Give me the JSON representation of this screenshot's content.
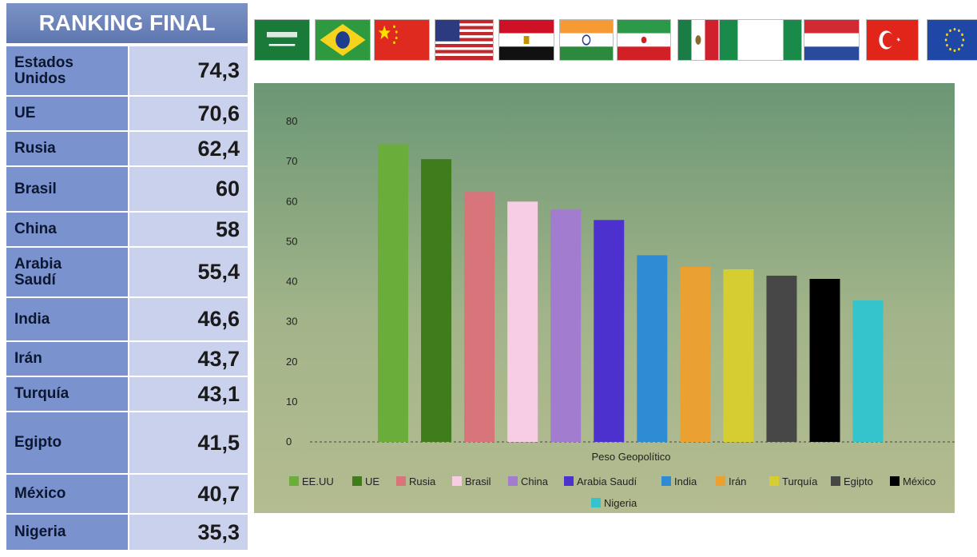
{
  "ranking": {
    "title": "RANKING FINAL",
    "rows": [
      {
        "country": "Estados Unidos",
        "value": "74,3"
      },
      {
        "country": "UE",
        "value": "70,6"
      },
      {
        "country": "Rusia",
        "value": "62,4"
      },
      {
        "country": "Brasil",
        "value": "60"
      },
      {
        "country": "China",
        "value": "58"
      },
      {
        "country": "Arabia Saudí",
        "value": "55,4"
      },
      {
        "country": "India",
        "value": "46,6"
      },
      {
        "country": "Irán",
        "value": "43,7"
      },
      {
        "country": "Turquía",
        "value": "43,1"
      },
      {
        "country": "Egipto",
        "value": "41,5"
      },
      {
        "country": "México",
        "value": "40,7"
      },
      {
        "country": "Nigeria",
        "value": "35,3"
      }
    ]
  },
  "flags": [
    {
      "name": "saudi-arabia-flag"
    },
    {
      "name": "brazil-flag"
    },
    {
      "name": "china-flag"
    },
    {
      "name": "usa-flag"
    },
    {
      "name": "egypt-flag"
    },
    {
      "name": "india-flag"
    },
    {
      "name": "iran-flag"
    },
    {
      "name": "mexico-flag"
    },
    {
      "name": "nigeria-flag"
    },
    {
      "name": "netherlands-flag"
    },
    {
      "name": "turkey-flag"
    },
    {
      "name": "eu-flag"
    }
  ],
  "chart_data": {
    "type": "bar",
    "title": "",
    "xlabel": "Peso Geopolítico",
    "ylabel": "",
    "ylim": [
      0,
      80
    ],
    "yticks": [
      "0",
      "10",
      "20",
      "30",
      "40",
      "50",
      "60",
      "70",
      "80"
    ],
    "grid": false,
    "legend_position": "bottom",
    "series": [
      {
        "name": "EE.UU",
        "value": 74.3,
        "color": "#6aad3b"
      },
      {
        "name": "UE",
        "value": 70.6,
        "color": "#3f7d1c"
      },
      {
        "name": "Rusia",
        "value": 62.4,
        "color": "#d8757a"
      },
      {
        "name": "Brasil",
        "value": 60,
        "color": "#f7cde3"
      },
      {
        "name": "China",
        "value": 58,
        "color": "#a27ccf"
      },
      {
        "name": "Arabia Saudí",
        "value": 55.4,
        "color": "#4d31cf"
      },
      {
        "name": "India",
        "value": 46.6,
        "color": "#2f8bd3"
      },
      {
        "name": "Irán",
        "value": 43.7,
        "color": "#eba132"
      },
      {
        "name": "Turquía",
        "value": 43.1,
        "color": "#d6cd33"
      },
      {
        "name": "Egipto",
        "value": 41.5,
        "color": "#474747"
      },
      {
        "name": "México",
        "value": 40.7,
        "color": "#000000"
      },
      {
        "name": "Nigeria",
        "value": 35.3,
        "color": "#35c3cc"
      }
    ]
  }
}
